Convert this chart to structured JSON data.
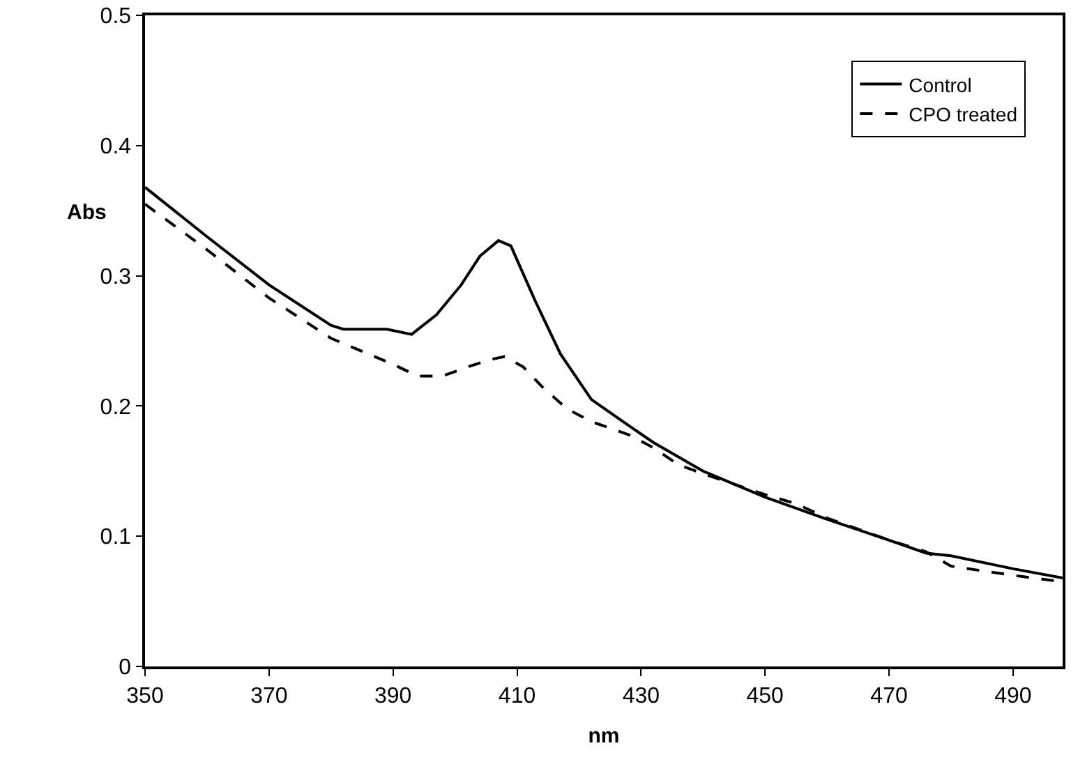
{
  "chart_data": {
    "type": "line",
    "xlabel": "nm",
    "ylabel": "Abs",
    "xlim": [
      350,
      498
    ],
    "xticks": [
      350,
      370,
      390,
      410,
      430,
      450,
      470,
      490
    ],
    "ylim": [
      0,
      0.5
    ],
    "yticks": [
      0,
      0.1,
      0.2,
      0.3,
      0.4,
      0.5
    ],
    "grid": false,
    "legend": "top right",
    "marker": "none",
    "series": [
      {
        "name": "Control",
        "color": "#000000",
        "line_style": "solid",
        "x": [
          350,
          360,
          370,
          380,
          382,
          389,
          393,
          397,
          401,
          404,
          407,
          409,
          413,
          417,
          422,
          428,
          432,
          440,
          450,
          460,
          470,
          476,
          480,
          490,
          498
        ],
        "values": [
          0.368,
          0.33,
          0.293,
          0.262,
          0.259,
          0.259,
          0.255,
          0.27,
          0.293,
          0.315,
          0.327,
          0.323,
          0.28,
          0.24,
          0.205,
          0.185,
          0.172,
          0.15,
          0.13,
          0.113,
          0.097,
          0.087,
          0.085,
          0.075,
          0.068
        ]
      },
      {
        "name": "CPO treated",
        "color": "#000000",
        "line_style": "dashed",
        "x": [
          350,
          360,
          370,
          380,
          390,
          394,
          398,
          402,
          406,
          408,
          411,
          414,
          418,
          422,
          428,
          432,
          436,
          440,
          450,
          455,
          460,
          470,
          476,
          480,
          490,
          498
        ],
        "values": [
          0.355,
          0.32,
          0.283,
          0.252,
          0.232,
          0.223,
          0.223,
          0.23,
          0.236,
          0.238,
          0.23,
          0.215,
          0.198,
          0.188,
          0.178,
          0.168,
          0.155,
          0.148,
          0.132,
          0.125,
          0.114,
          0.097,
          0.088,
          0.077,
          0.07,
          0.065
        ]
      }
    ]
  }
}
